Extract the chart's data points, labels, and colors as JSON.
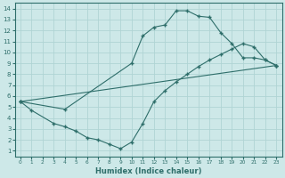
{
  "xlabel": "Humidex (Indice chaleur)",
  "bg_color": "#cde8e8",
  "grid_color": "#b0d4d4",
  "line_color": "#2e6e6a",
  "xlim": [
    -0.5,
    23.5
  ],
  "ylim": [
    0.5,
    14.5
  ],
  "xticks": [
    0,
    1,
    2,
    3,
    4,
    5,
    6,
    7,
    8,
    9,
    10,
    11,
    12,
    13,
    14,
    15,
    16,
    17,
    18,
    19,
    20,
    21,
    22,
    23
  ],
  "yticks": [
    1,
    2,
    3,
    4,
    5,
    6,
    7,
    8,
    9,
    10,
    11,
    12,
    13,
    14
  ],
  "curve1_x": [
    0,
    1,
    3,
    4,
    5,
    6,
    7,
    8,
    9,
    10,
    11,
    12,
    13,
    14,
    15,
    16,
    17,
    18,
    19,
    20,
    21,
    22,
    23
  ],
  "curve1_y": [
    5.5,
    4.7,
    3.5,
    3.2,
    2.8,
    2.2,
    2.0,
    1.6,
    1.2,
    1.8,
    3.5,
    5.5,
    6.5,
    7.3,
    8.0,
    8.7,
    9.3,
    9.8,
    10.3,
    10.8,
    10.5,
    9.3,
    8.8
  ],
  "curve2_x": [
    0,
    4,
    10,
    11,
    12,
    13,
    14,
    15,
    16,
    17,
    18,
    19,
    20,
    21,
    22,
    23
  ],
  "curve2_y": [
    5.5,
    4.8,
    9.0,
    11.5,
    12.3,
    12.5,
    13.8,
    13.8,
    13.3,
    13.2,
    11.8,
    10.8,
    9.5,
    9.5,
    9.3,
    8.8
  ],
  "curve3_x": [
    0,
    23
  ],
  "curve3_y": [
    5.5,
    8.8
  ]
}
